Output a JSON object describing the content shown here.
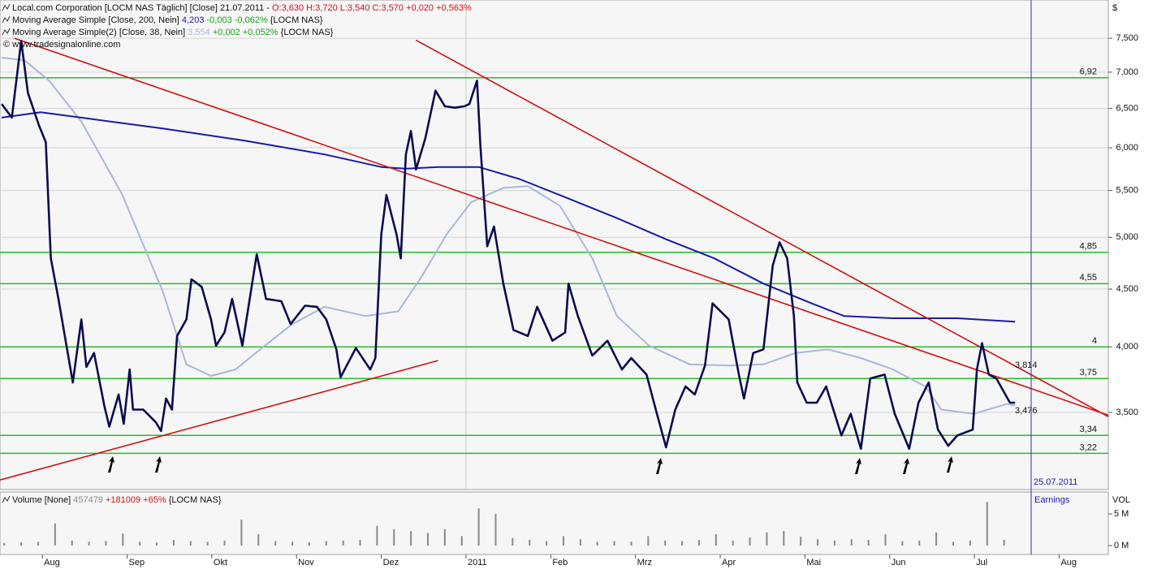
{
  "chart_data": [
    {
      "type": "line",
      "log_y": true,
      "unit": "$",
      "copyright": "© www.tradesignalonline.com",
      "xlim": [
        -0.5,
        12.58
      ],
      "xticks": [
        {
          "value": 0,
          "label": "Aug"
        },
        {
          "value": 1,
          "label": "Sep"
        },
        {
          "value": 2,
          "label": "Okt"
        },
        {
          "value": 3,
          "label": "Nov"
        },
        {
          "value": 4,
          "label": "Dez"
        },
        {
          "value": 5,
          "label": "2011"
        },
        {
          "value": 6,
          "label": "Feb"
        },
        {
          "value": 7,
          "label": "Mrz"
        },
        {
          "value": 8,
          "label": "Apr"
        },
        {
          "value": 9,
          "label": "Mai"
        },
        {
          "value": 10,
          "label": "Jun"
        },
        {
          "value": 11,
          "label": "Jul"
        },
        {
          "value": 12,
          "label": "Aug"
        }
      ],
      "ylim": [
        2.991,
        8.108
      ],
      "yticks": [
        {
          "value": 7.5,
          "label": "7,500"
        },
        {
          "value": 7,
          "label": "7,000"
        },
        {
          "value": 6.5,
          "label": "6,500"
        },
        {
          "value": 6,
          "label": "6,000"
        },
        {
          "value": 5.5,
          "label": "5,500"
        },
        {
          "value": 5,
          "label": "5,000"
        },
        {
          "value": 4.5,
          "label": "4,500"
        },
        {
          "value": 4,
          "label": "4,000"
        },
        {
          "value": 3.5,
          "label": "3,500"
        }
      ],
      "grid": true,
      "series": [
        {
          "name": "Local.com Corporation [LOCM NAS  Täglich] [Close] 21.07.2011 -",
          "quote": "O:3,630 H:3,720 L:3,540 C:3,570 +0,020 +0,563%",
          "color": "#0c0c4e",
          "x": [
            -0.48,
            -0.36,
            -0.25,
            -0.17,
            -0.04,
            0.04,
            0.1,
            0.19,
            0.31,
            0.36,
            0.46,
            0.52,
            0.61,
            0.73,
            0.79,
            0.9,
            0.96,
            1.03,
            1.07,
            1.19,
            1.34,
            1.4,
            1.46,
            1.53,
            1.59,
            1.7,
            1.76,
            1.88,
            1.99,
            2.05,
            2.15,
            2.24,
            2.36,
            2.47,
            2.53,
            2.64,
            2.82,
            2.93,
            3.1,
            3.24,
            3.35,
            3.47,
            3.52,
            3.7,
            3.87,
            3.93,
            4.0,
            4.06,
            4.18,
            4.23,
            4.29,
            4.35,
            4.41,
            4.52,
            4.64,
            4.75,
            4.87,
            4.98,
            5.04,
            5.13,
            5.17,
            5.25,
            5.33,
            5.44,
            5.56,
            5.73,
            5.84,
            6.02,
            6.17,
            6.21,
            6.32,
            6.49,
            6.67,
            6.84,
            6.95,
            7.13,
            7.24,
            7.36,
            7.47,
            7.59,
            7.7,
            7.82,
            7.91,
            8.1,
            8.22,
            8.28,
            8.39,
            8.51,
            8.62,
            8.7,
            8.79,
            8.87,
            8.91,
            9.02,
            9.14,
            9.25,
            9.43,
            9.54,
            9.66,
            9.77,
            9.94,
            10.06,
            10.23,
            10.34,
            10.46,
            10.57,
            10.69,
            10.8,
            10.98,
            11.03,
            11.09,
            11.17,
            11.26,
            11.42,
            11.48
          ],
          "values": [
            6.56,
            6.38,
            7.46,
            6.71,
            6.28,
            6.07,
            4.79,
            4.41,
            3.91,
            3.72,
            4.23,
            3.84,
            3.95,
            3.55,
            3.4,
            3.63,
            3.42,
            3.82,
            3.52,
            3.52,
            3.43,
            3.37,
            3.6,
            3.52,
            4.09,
            4.23,
            4.59,
            4.52,
            4.23,
            4.01,
            4.12,
            4.41,
            4.01,
            4.52,
            4.83,
            4.41,
            4.39,
            4.19,
            4.35,
            4.34,
            4.23,
            3.98,
            3.76,
            3.99,
            3.82,
            3.91,
            5.03,
            5.45,
            5.03,
            4.79,
            5.92,
            6.21,
            5.74,
            6.12,
            6.74,
            6.53,
            6.51,
            6.53,
            6.56,
            6.88,
            6.02,
            4.91,
            5.11,
            4.55,
            4.14,
            4.09,
            4.34,
            4.05,
            4.12,
            4.55,
            4.26,
            3.93,
            4.05,
            3.82,
            3.91,
            3.78,
            3.52,
            3.26,
            3.52,
            3.69,
            3.63,
            3.85,
            4.37,
            4.23,
            3.78,
            3.6,
            3.95,
            3.98,
            4.72,
            4.95,
            4.79,
            4.26,
            3.72,
            3.57,
            3.57,
            3.69,
            3.34,
            3.49,
            3.25,
            3.75,
            3.78,
            3.49,
            3.25,
            3.57,
            3.72,
            3.38,
            3.27,
            3.34,
            3.38,
            3.82,
            4.03,
            3.78,
            3.75,
            3.57,
            3.57
          ]
        },
        {
          "name": "Moving Average Simple [Close, 200, Nein]",
          "last_label": "4,203",
          "change": "-0,003 -0,062%",
          "source": "{LOCM NAS}",
          "color": "#1a1aa8",
          "x": [
            -0.48,
            -0.02,
            0.46,
            1.42,
            2.38,
            3.33,
            4.0,
            4.29,
            4.67,
            5.15,
            5.63,
            6.21,
            6.78,
            7.36,
            7.93,
            8.51,
            9.08,
            9.46,
            10.04,
            10.8,
            11.48
          ],
          "values": [
            6.38,
            6.45,
            6.38,
            6.24,
            6.09,
            5.92,
            5.77,
            5.75,
            5.77,
            5.77,
            5.63,
            5.41,
            5.2,
            4.98,
            4.79,
            4.55,
            4.37,
            4.26,
            4.24,
            4.24,
            4.21
          ]
        },
        {
          "name": "Moving Average Simple(2) [Close, 38, Nein]",
          "last_label": "3,554",
          "change": "+0,002 +0,052%",
          "source": "{LOCM NAS}",
          "color": "#a8b8d8",
          "x": [
            -0.48,
            -0.21,
            0.08,
            0.46,
            0.94,
            1.42,
            1.7,
            1.99,
            2.28,
            2.57,
            2.95,
            3.33,
            3.81,
            4.2,
            4.48,
            4.77,
            5.06,
            5.44,
            5.73,
            6.11,
            6.49,
            6.78,
            7.16,
            7.64,
            8.12,
            8.51,
            8.89,
            9.27,
            9.66,
            10.04,
            10.42,
            10.61,
            10.99,
            11.38,
            11.48
          ],
          "values": [
            7.21,
            7.17,
            6.88,
            6.33,
            5.46,
            4.48,
            3.86,
            3.77,
            3.82,
            3.98,
            4.19,
            4.34,
            4.26,
            4.3,
            4.62,
            5.03,
            5.37,
            5.53,
            5.55,
            5.33,
            4.79,
            4.26,
            4.01,
            3.86,
            3.85,
            3.86,
            3.95,
            3.98,
            3.91,
            3.82,
            3.69,
            3.52,
            3.49,
            3.56,
            3.55
          ]
        }
      ],
      "trendlines": [
        {
          "color": "#d01010",
          "x": [
            -0.33,
            12.58
          ],
          "values": [
            7.5,
            3.48
          ]
        },
        {
          "color": "#d01010",
          "x": [
            4.41,
            12.58
          ],
          "values": [
            7.47,
            3.47
          ]
        },
        {
          "color": "#d01010",
          "x": [
            -0.5,
            4.67
          ],
          "values": [
            3.05,
            3.89
          ]
        }
      ],
      "levels_color": "#22c022",
      "levels": [
        {
          "value": 6.92,
          "label": "6,92"
        },
        {
          "value": 4.85,
          "label": "4,85"
        },
        {
          "value": 4.55,
          "label": "4,55"
        },
        {
          "value": 4,
          "label": "4"
        },
        {
          "value": 3.75,
          "label": "3,75"
        },
        {
          "value": 3.34,
          "label": "3,34"
        },
        {
          "value": 3.22,
          "label": "3,22"
        }
      ],
      "line_labels": [
        {
          "value": 3.814,
          "label": "3,814"
        },
        {
          "value": 3.476,
          "label": "3,476"
        }
      ],
      "event": {
        "date": "25.07.2011",
        "label": "Earnings"
      }
    },
    {
      "type": "bar",
      "name": "Volume [None]",
      "last_label": "457479",
      "change": "+181009 +65%",
      "source": "{LOCM NAS}",
      "axis_label": "VOL",
      "color": "#8a8a8a",
      "ylim": [
        -1.41,
        8.46
      ],
      "yticks": [
        {
          "value": 5,
          "label": "5 M"
        },
        {
          "value": 0,
          "label": "0 M"
        }
      ],
      "x": [
        -0.45,
        -0.25,
        -0.05,
        0.15,
        0.35,
        0.55,
        0.75,
        0.95,
        1.15,
        1.35,
        1.55,
        1.75,
        1.95,
        2.15,
        2.35,
        2.55,
        2.75,
        2.95,
        3.15,
        3.35,
        3.55,
        3.75,
        3.95,
        4.15,
        4.35,
        4.55,
        4.75,
        4.95,
        5.15,
        5.35,
        5.55,
        5.75,
        5.95,
        6.15,
        6.35,
        6.55,
        6.75,
        6.95,
        7.15,
        7.35,
        7.55,
        7.75,
        7.95,
        8.15,
        8.35,
        8.55,
        8.75,
        8.95,
        9.15,
        9.35,
        9.55,
        9.75,
        9.95,
        10.15,
        10.35,
        10.55,
        10.75,
        10.95,
        11.15,
        11.35
      ],
      "values": [
        0.4,
        0.5,
        0.6,
        3.5,
        0.8,
        0.6,
        0.7,
        1.9,
        0.6,
        0.5,
        0.9,
        0.7,
        0.6,
        0.8,
        4.1,
        1.8,
        0.7,
        0.6,
        0.5,
        0.7,
        0.8,
        0.9,
        3.1,
        2.6,
        2.3,
        2.0,
        2.6,
        1.5,
        5.9,
        5.0,
        1.2,
        0.9,
        0.7,
        1.5,
        1.0,
        0.6,
        0.7,
        0.6,
        1.5,
        0.8,
        0.7,
        0.9,
        1.8,
        0.8,
        1.3,
        2.1,
        2.3,
        1.4,
        1.0,
        0.8,
        1.0,
        0.9,
        1.8,
        0.7,
        0.8,
        2.1,
        0.6,
        0.8,
        6.9,
        0.9
      ]
    }
  ]
}
